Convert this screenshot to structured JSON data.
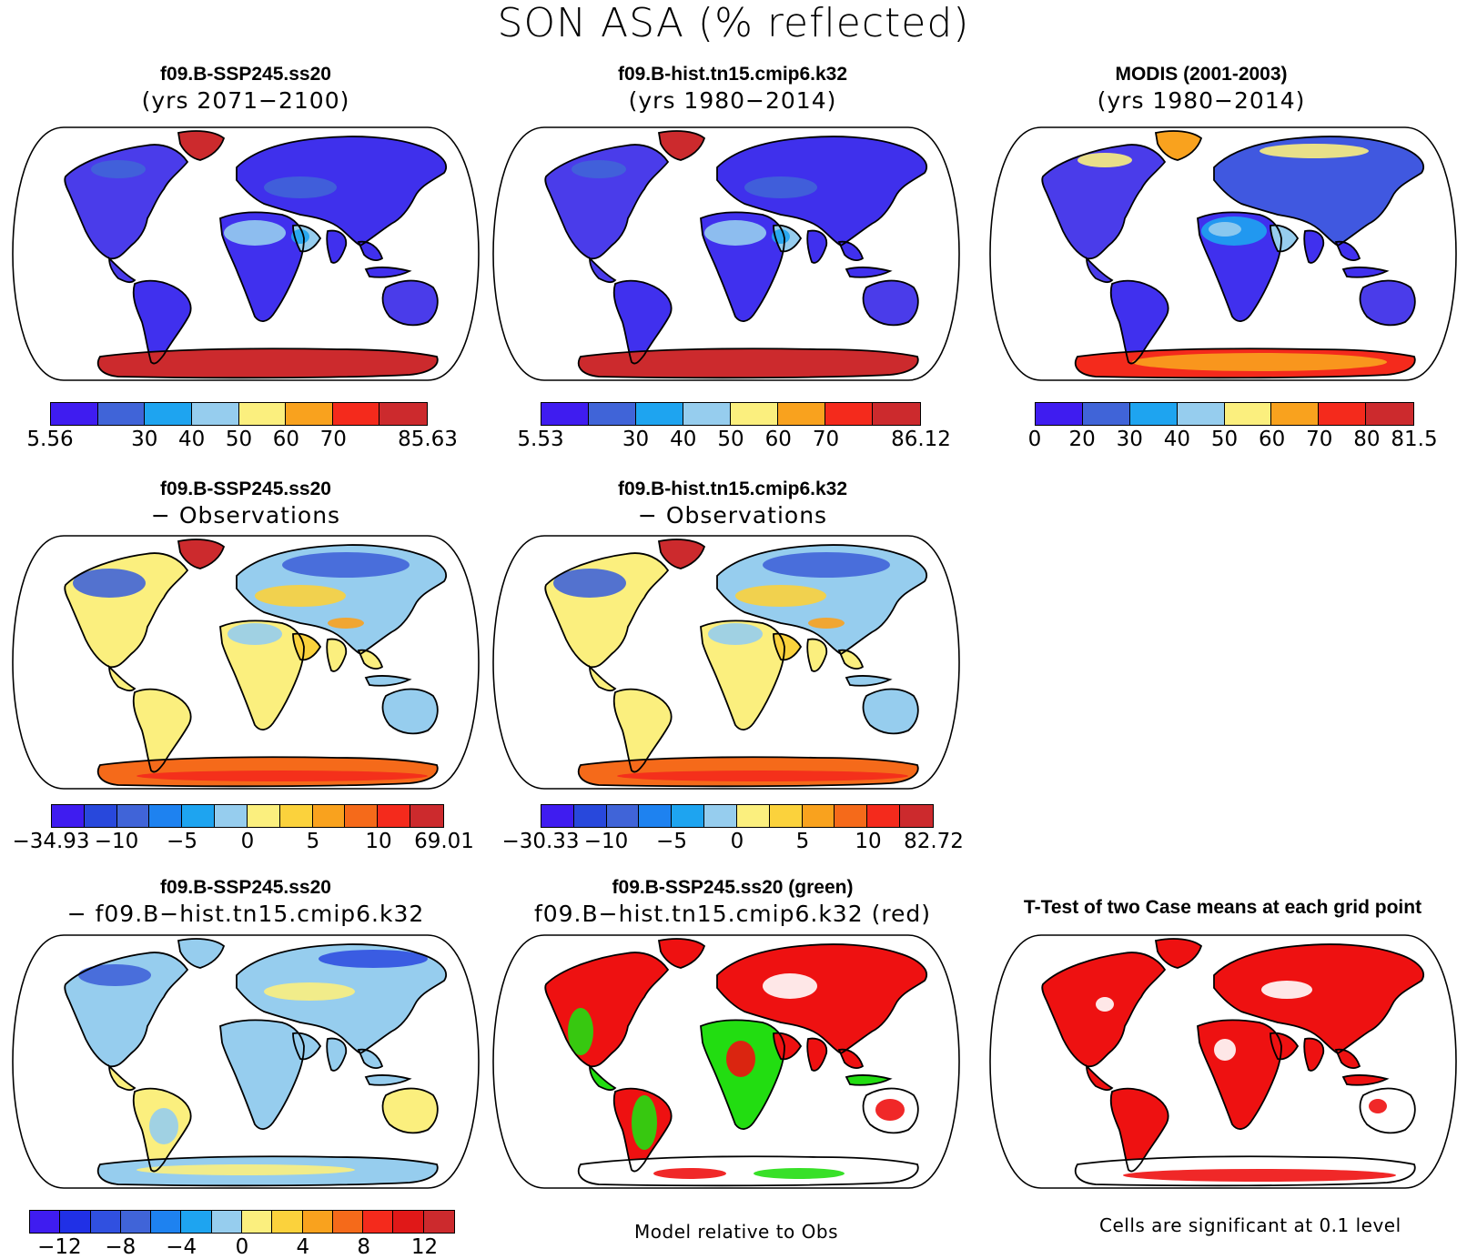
{
  "title": "SON ASA (% reflected)",
  "panels": [
    {
      "id": "p1",
      "title": "f09.B-SSP245.ss20",
      "subtitle": "(yrs 2071−2100)",
      "style": "model"
    },
    {
      "id": "p2",
      "title": "f09.B-hist.tn15.cmip6.k32",
      "subtitle": "(yrs 1980−2014)",
      "style": "model"
    },
    {
      "id": "p3",
      "title": "MODIS (2001-2003)",
      "subtitle": "(yrs 1980−2014)",
      "style": "obs"
    },
    {
      "id": "p4",
      "title": "f09.B-SSP245.ss20",
      "subtitle": "− Observations",
      "style": "diff"
    },
    {
      "id": "p5",
      "title": "f09.B-hist.tn15.cmip6.k32",
      "subtitle": "− Observations",
      "style": "diff"
    },
    {
      "id": "p6",
      "title": "f09.B-SSP245.ss20",
      "subtitle": "− f09.B−hist.tn15.cmip6.k32",
      "style": "casediff"
    },
    {
      "id": "p7",
      "title": "f09.B-SSP245.ss20 (green)",
      "subtitle": "f09.B−hist.tn15.cmip6.k32 (red)",
      "style": "greenred"
    },
    {
      "id": "p8",
      "title": "T-Test of two Case means at each grid point",
      "subtitle": "",
      "style": "ttest"
    }
  ],
  "colorbars": [
    {
      "id": "cb1",
      "colors": [
        "#3f1cf0",
        "#4064d8",
        "#1ea4f0",
        "#96cdee",
        "#fbef7e",
        "#f9a21e",
        "#f42a1c",
        "#cc2a2d"
      ],
      "labels": [
        "5.56",
        "30",
        "40",
        "50",
        "60",
        "70",
        "85.63"
      ],
      "label_at": [
        0,
        2,
        3,
        4,
        5,
        6,
        8
      ]
    },
    {
      "id": "cb2",
      "colors": [
        "#3f1cf0",
        "#4064d8",
        "#1ea4f0",
        "#96cdee",
        "#fbef7e",
        "#f9a21e",
        "#f42a1c",
        "#cc2a2d"
      ],
      "labels": [
        "5.53",
        "30",
        "40",
        "50",
        "60",
        "70",
        "86.12"
      ],
      "label_at": [
        0,
        2,
        3,
        4,
        5,
        6,
        8
      ]
    },
    {
      "id": "cb3",
      "colors": [
        "#3f1cf0",
        "#4064d8",
        "#1ea4f0",
        "#96cdee",
        "#fbef7e",
        "#f9a21e",
        "#f42a1c",
        "#cc2a2d"
      ],
      "labels": [
        "0",
        "20",
        "30",
        "40",
        "50",
        "60",
        "70",
        "80",
        "81.5"
      ],
      "label_at": [
        0,
        1,
        2,
        3,
        4,
        5,
        6,
        7,
        8
      ]
    },
    {
      "id": "cb4",
      "colors": [
        "#3f1cf0",
        "#2848dc",
        "#4064d8",
        "#1e82f0",
        "#1ea4f0",
        "#96cdee",
        "#fbef7e",
        "#fbd23c",
        "#f9a21e",
        "#f56a1a",
        "#f42a1c",
        "#cc2a2d"
      ],
      "labels": [
        "−34.93",
        "−10",
        "−5",
        "0",
        "5",
        "10",
        "69.01"
      ],
      "label_at": [
        0,
        2,
        4,
        6,
        8,
        10,
        12
      ]
    },
    {
      "id": "cb5",
      "colors": [
        "#3f1cf0",
        "#2848dc",
        "#4064d8",
        "#1e82f0",
        "#1ea4f0",
        "#96cdee",
        "#fbef7e",
        "#fbd23c",
        "#f9a21e",
        "#f56a1a",
        "#f42a1c",
        "#cc2a2d"
      ],
      "labels": [
        "−30.33",
        "−10",
        "−5",
        "0",
        "5",
        "10",
        "82.72"
      ],
      "label_at": [
        0,
        2,
        4,
        6,
        8,
        10,
        12
      ]
    },
    {
      "id": "cb6",
      "colors": [
        "#3f1cf0",
        "#2030e6",
        "#3050e0",
        "#4064d8",
        "#1e82f0",
        "#1ea4f0",
        "#96cdee",
        "#fbef7e",
        "#fbd23c",
        "#f9a21e",
        "#f56a1a",
        "#f42a1c",
        "#e01818",
        "#cc2a2d"
      ],
      "labels": [
        "−12",
        "−8",
        "−4",
        "0",
        "4",
        "8",
        "12"
      ],
      "label_at": [
        1,
        3,
        5,
        7,
        9,
        11,
        13
      ]
    }
  ],
  "notes": {
    "model_relative": "Model relative to Obs",
    "significance": "Cells are significant at 0.1 level"
  }
}
